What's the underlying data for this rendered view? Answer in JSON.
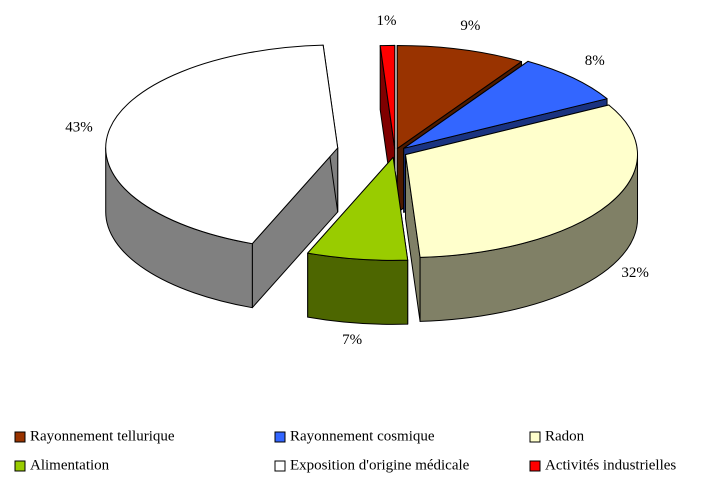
{
  "chart_data": {
    "type": "pie",
    "categories": [
      "Rayonnement tellurique",
      "Rayonnement cosmique",
      "Radon",
      "Alimentation",
      "Exposition d'origine médicale",
      "Activités industrielles"
    ],
    "values": [
      9,
      8,
      32,
      7,
      43,
      1
    ],
    "value_labels": [
      "9%",
      "8%",
      "32%",
      "7%",
      "43%",
      "1%"
    ],
    "colors": [
      "#993300",
      "#3366ff",
      "#ffffcc",
      "#99cc00",
      "#ffffff",
      "#ff0000"
    ],
    "legend": "bottom"
  }
}
